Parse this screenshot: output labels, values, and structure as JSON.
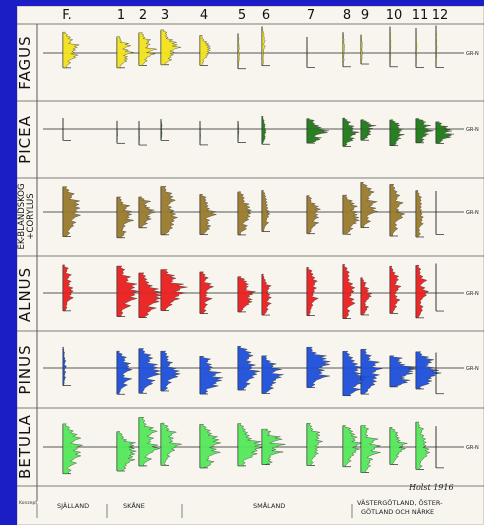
{
  "site_numbers": [
    "F.",
    "1",
    "2",
    "3",
    "4",
    "5",
    "6",
    "7",
    "8",
    "9",
    "10",
    "11",
    "12"
  ],
  "reference_label": "GR-N",
  "signature": "Holst 1916",
  "corner_note": "Konzept",
  "region_labels": [
    "SJÄLLAND",
    "SKÅNE",
    "SMÅLAND",
    "VÄSTERGÖTLAND, ÖSTER-",
    "GÖTLAND OCH NÄRKE"
  ],
  "rows": [
    {
      "label": "FAGUS",
      "color": "#f2e31d"
    },
    {
      "label": "PICEA",
      "color": "#1f7a18"
    },
    {
      "label": "EK-BLANDSKOG +CORYLUS",
      "label_lines": [
        "EK-BLANDSKOG",
        "+CORYLUS"
      ],
      "color": "#9a7a2e"
    },
    {
      "label": "ALNUS",
      "color": "#ec1f1f"
    },
    {
      "label": "PINUS",
      "color": "#1d4fdc"
    },
    {
      "label": "BETULA",
      "color": "#55e85a"
    }
  ]
}
